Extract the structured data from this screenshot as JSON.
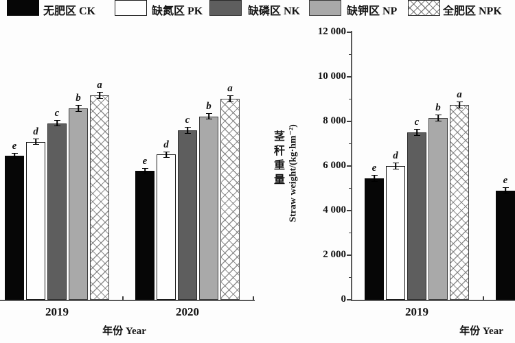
{
  "legend": {
    "items": [
      {
        "key": "ck",
        "label": "无肥区 CK",
        "swatch": "solid-black",
        "color": "#000000"
      },
      {
        "key": "pk",
        "label": "缺氮区 PK",
        "swatch": "solid-white",
        "color": "#ffffff"
      },
      {
        "key": "nk",
        "label": "缺磷区 NK",
        "swatch": "solid-dark-gray",
        "color": "#5e5e5e"
      },
      {
        "key": "np",
        "label": "缺钾区 NP",
        "swatch": "solid-light-gray",
        "color": "#a9a9a9"
      },
      {
        "key": "npk",
        "label": "全肥区 NPK",
        "swatch": "crosshatch",
        "color": "#ffffff"
      }
    ]
  },
  "chart_data": [
    {
      "type": "bar",
      "panel": "left",
      "note": "left panel cropped at image edge; its y-axis is not visible, values estimated on the right panel scale",
      "categories": [
        "2019",
        "2020"
      ],
      "series": [
        {
          "key": "ck",
          "name": "无肥区 CK",
          "values": [
            6450,
            5770
          ],
          "letters": [
            "e",
            "e"
          ]
        },
        {
          "key": "pk",
          "name": "缺氮区 PK",
          "values": [
            7090,
            6510
          ],
          "letters": [
            "d",
            "d"
          ]
        },
        {
          "key": "nk",
          "name": "缺磷区 NK",
          "values": [
            7920,
            7610
          ],
          "letters": [
            "c",
            "c"
          ]
        },
        {
          "key": "np",
          "name": "缺钾区 NP",
          "values": [
            8590,
            8230
          ],
          "letters": [
            "b",
            "b"
          ]
        },
        {
          "key": "npk",
          "name": "全肥区 NPK",
          "values": [
            9180,
            9020
          ],
          "letters": [
            "a",
            "a"
          ]
        }
      ],
      "xlabel": "年份 Year",
      "ylim": [
        0,
        12000
      ],
      "error_bar": 150,
      "grid": false
    },
    {
      "type": "bar",
      "panel": "right",
      "note": "2020 group cropped at right image edge; only CK bar partially visible",
      "categories": [
        "2019",
        "2020"
      ],
      "series": [
        {
          "key": "ck",
          "name": "无肥区 CK",
          "values": [
            5450,
            4900
          ],
          "letters": [
            "e",
            "e"
          ]
        },
        {
          "key": "pk",
          "name": "缺氮区 PK",
          "values": [
            6000,
            null
          ],
          "letters": [
            "d",
            null
          ]
        },
        {
          "key": "nk",
          "name": "缺磷区 NK",
          "values": [
            7500,
            null
          ],
          "letters": [
            "c",
            null
          ]
        },
        {
          "key": "np",
          "name": "缺钾区 NP",
          "values": [
            8150,
            null
          ],
          "letters": [
            "b",
            null
          ]
        },
        {
          "key": "npk",
          "name": "全肥区 NPK",
          "values": [
            8750,
            null
          ],
          "letters": [
            "a",
            null
          ]
        }
      ],
      "xlabel": "年份 Year",
      "ylabel_zh": "茎秆重量",
      "ylabel_en": "Straw weight/(kg·hm⁻²)",
      "ylim": [
        0,
        12000
      ],
      "yticks": [
        {
          "v": 0,
          "label": "0"
        },
        {
          "v": 2000,
          "label": "2 000"
        },
        {
          "v": 4000,
          "label": "4 000"
        },
        {
          "v": 6000,
          "label": "6 000"
        },
        {
          "v": 8000,
          "label": "8 000"
        },
        {
          "v": 10000,
          "label": "10 000"
        },
        {
          "v": 12000,
          "label": "12 000"
        }
      ],
      "error_bar": 150,
      "grid": false
    }
  ]
}
